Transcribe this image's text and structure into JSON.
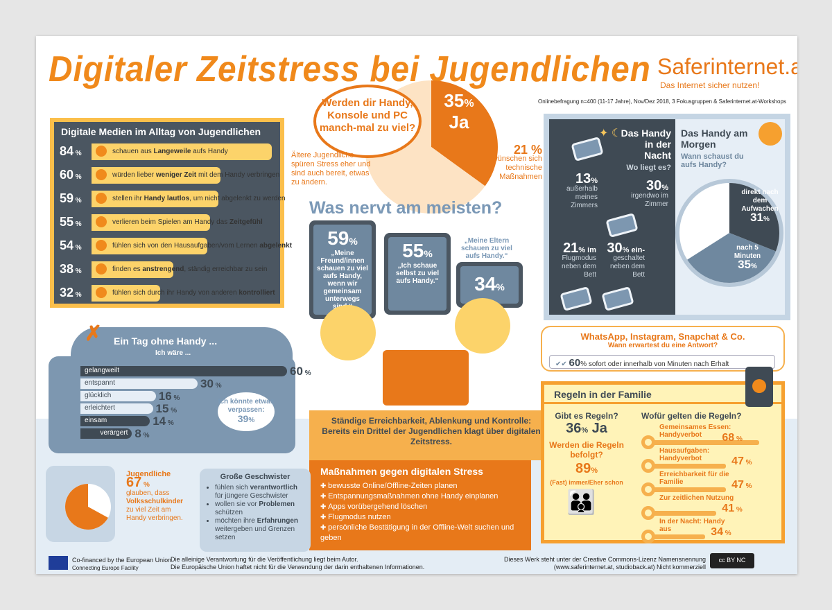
{
  "title": "Digitaler Zeitstress bei Jugendlichen",
  "logo": {
    "text": "Saferinternet.at",
    "tagline": "Das Internet sicher nutzen!"
  },
  "source": "Onlinebefragung n=400 (11-17 Jahre), Nov/Dez 2018, 3 Fokusgruppen & Saferinternet.at-Workshops",
  "colors": {
    "orange": "#e8781a",
    "slate": "#4b5661",
    "yellow": "#fcd36a",
    "bluegrey": "#7d97b0",
    "light_blue": "#e4edf5"
  },
  "digitale_medien": {
    "title": "Digitale Medien im Alltag von Jugendlichen",
    "items": [
      {
        "pct": "84",
        "pre": "schauen aus ",
        "bold": "Langeweile",
        "post": " aufs Handy",
        "mood": "bored-face-icon"
      },
      {
        "pct": "60",
        "pre": "würden lieber ",
        "bold": "weniger Zeit",
        "post": " mit dem Handy verbringen",
        "mood": "smile-face-icon"
      },
      {
        "pct": "59",
        "pre": "stellen ihr ",
        "bold": "Handy lautlos",
        "post": ", um nicht abgelenkt zu werden",
        "mood": "sleepy-face-icon"
      },
      {
        "pct": "55",
        "pre": "verlieren beim Spielen am Handy das ",
        "bold": "Zeitgefühl",
        "post": "",
        "mood": "surprised-face-icon"
      },
      {
        "pct": "54",
        "pre": "fühlen sich von den Hausaufgaben/vom Lernen ",
        "bold": "abgelenkt",
        "post": "",
        "mood": "dizzy-face-icon"
      },
      {
        "pct": "38",
        "pre": "finden es ",
        "bold": "anstrengend",
        "post": ", ständig erreichbar zu sein",
        "mood": "tired-face-icon"
      },
      {
        "pct": "32",
        "pre": "fühlen sich durch ihr Handy von anderen ",
        "bold": "kontrolliert",
        "post": "",
        "mood": "angry-face-icon"
      }
    ]
  },
  "zu_viel": {
    "question": "Werden dir Handy, Konsole und PC manch-mal zu viel?",
    "ja_pct": "35",
    "ja_label": "Ja",
    "pct_sign": "%",
    "ja_value": 35,
    "aeltere": "Ältere Jugendliche spüren Stress eher und sind auch bereit, etwas zu ändern.",
    "tech_pct": "21 %",
    "tech_text": "wünschen sich technische Maßnahmen"
  },
  "nervt": {
    "title": "Was nervt am meisten?",
    "items": [
      {
        "pct": "59",
        "text": "„Meine Freund/innen schauen zu viel aufs Handy, wenn wir gemeinsam unterwegs sind.“"
      },
      {
        "pct": "55",
        "text": "„Ich schaue selbst zu viel aufs Handy.“"
      },
      {
        "pct": "34",
        "text": "„Meine Eltern schauen zu viel aufs Handy.“"
      }
    ]
  },
  "nacht": {
    "title": "Das Handy in der Nacht",
    "question": "Wo liegt es?",
    "items": [
      {
        "pct": "13",
        "text": "außerhalb meines Zimmers"
      },
      {
        "pct": "30",
        "text": "irgendwo im Zimmer"
      },
      {
        "pct": "21",
        "suffix": "im",
        "text": "Flugmodus neben dem Bett"
      },
      {
        "pct": "30",
        "suffix": "ein-",
        "text": "geschaltet neben dem Bett"
      }
    ]
  },
  "morgen": {
    "title": "Das Handy am Morgen",
    "question": "Wann schaust du aufs Handy?",
    "slices": [
      {
        "label": "direkt nach dem Aufwachen",
        "pct": "31",
        "value": 31,
        "color": "#3f4a54"
      },
      {
        "label": "nach 5 Minuten",
        "pct": "35",
        "value": 35,
        "color": "#6f889f"
      }
    ]
  },
  "tag_ohne": {
    "title": "Ein Tag ohne Handy ...",
    "subtitle": "Ich wäre ...",
    "items": [
      {
        "label": "gelangweilt",
        "pct": "60",
        "value": 60,
        "dark": true
      },
      {
        "label": "entspannt",
        "pct": "30",
        "value": 30,
        "dark": false
      },
      {
        "label": "glücklich",
        "pct": "16",
        "value": 16,
        "dark": false
      },
      {
        "label": "erleichtert",
        "pct": "15",
        "value": 15,
        "dark": false
      },
      {
        "label": "einsam",
        "pct": "14",
        "value": 14,
        "dark": true
      },
      {
        "label": "verärgert",
        "pct": "8",
        "value": 8,
        "dark": true
      }
    ],
    "verpassen": "Ich könnte etwas verpassen:",
    "verpassen_pct": "39"
  },
  "erreichbarkeit": "Ständige Erreichbarkeit, Ablenkung und Kontrolle: Bereits ein Drittel der Jugendlichen klagt über digitalen Zeitstress.",
  "massnahmen": {
    "title": "Maßnahmen gegen digitalen Stress",
    "items": [
      "bewusste Online/Offline-Zeiten planen",
      "Entspannungsmaßnahmen ohne Handy einplanen",
      "Apps vorübergehend löschen",
      "Flugmodus nutzen",
      "persönliche Bestätigung in der Offline-Welt suchen und geben"
    ]
  },
  "whatsapp": {
    "title": "WhatsApp, Instagram, Snapchat & Co.",
    "subtitle": "Wann erwartest du eine Antwort?",
    "pct": "60",
    "text": "sofort oder innerhalb von Minuten nach Erhalt"
  },
  "regeln": {
    "title": "Regeln in der Familie",
    "gibt_es": "Gibt es Regeln?",
    "gibt_pct": "36",
    "gibt_ja": "Ja",
    "befolgt": "Werden die Regeln befolgt?",
    "befolgt_pct": "89",
    "befolgt_text": "(Fast) immer/Eher schon",
    "wofuer": "Wofür gelten die Regeln?",
    "items": [
      {
        "label": "Gemeinsames Essen: Handyverbot",
        "pct": "68",
        "value": 68
      },
      {
        "label": "Hausaufgaben: Handyverbot",
        "pct": "47",
        "value": 47
      },
      {
        "label": "Erreichbarkeit für die Familie",
        "pct": "47",
        "value": 47
      },
      {
        "label": "Zur zeitlichen Nutzung",
        "pct": "41",
        "value": 41
      },
      {
        "label": "In der Nacht: Handy aus",
        "pct": "34",
        "value": 34
      }
    ]
  },
  "jugendliche": {
    "title": "Jugendliche",
    "pct": "67",
    "pre": "glauben, dass",
    "bold": "Volksschulkinder",
    "post": "zu viel Zeit am Handy verbringen.",
    "value": 67
  },
  "geschwister": {
    "title": "Große Geschwister",
    "items": [
      {
        "pre": "fühlen sich ",
        "bold": "verantwortlich",
        "post": " für jüngere Geschwister"
      },
      {
        "pre": "wollen sie vor ",
        "bold": "Problemen",
        "post": " schützen"
      },
      {
        "pre": "möchten ihre ",
        "bold": "Erfahrungen",
        "post": " weitergeben und Grenzen setzen"
      }
    ]
  },
  "footer": {
    "eu1": "Co-financed by the European Union",
    "eu2": "Connecting Europe Facility",
    "mid1": "Die alleinige Verantwortung für die Veröffentlichung liegt beim Autor.",
    "mid2": "Die Europäische Union haftet nicht für die Verwendung der darin enthaltenen Informationen.",
    "r1": "Dieses Werk steht unter der Creative Commons-Lizenz Namensnennung",
    "r2": "(www.saferinternet.at, studioback.at) Nicht kommerziell",
    "cc": "cc BY NC"
  }
}
